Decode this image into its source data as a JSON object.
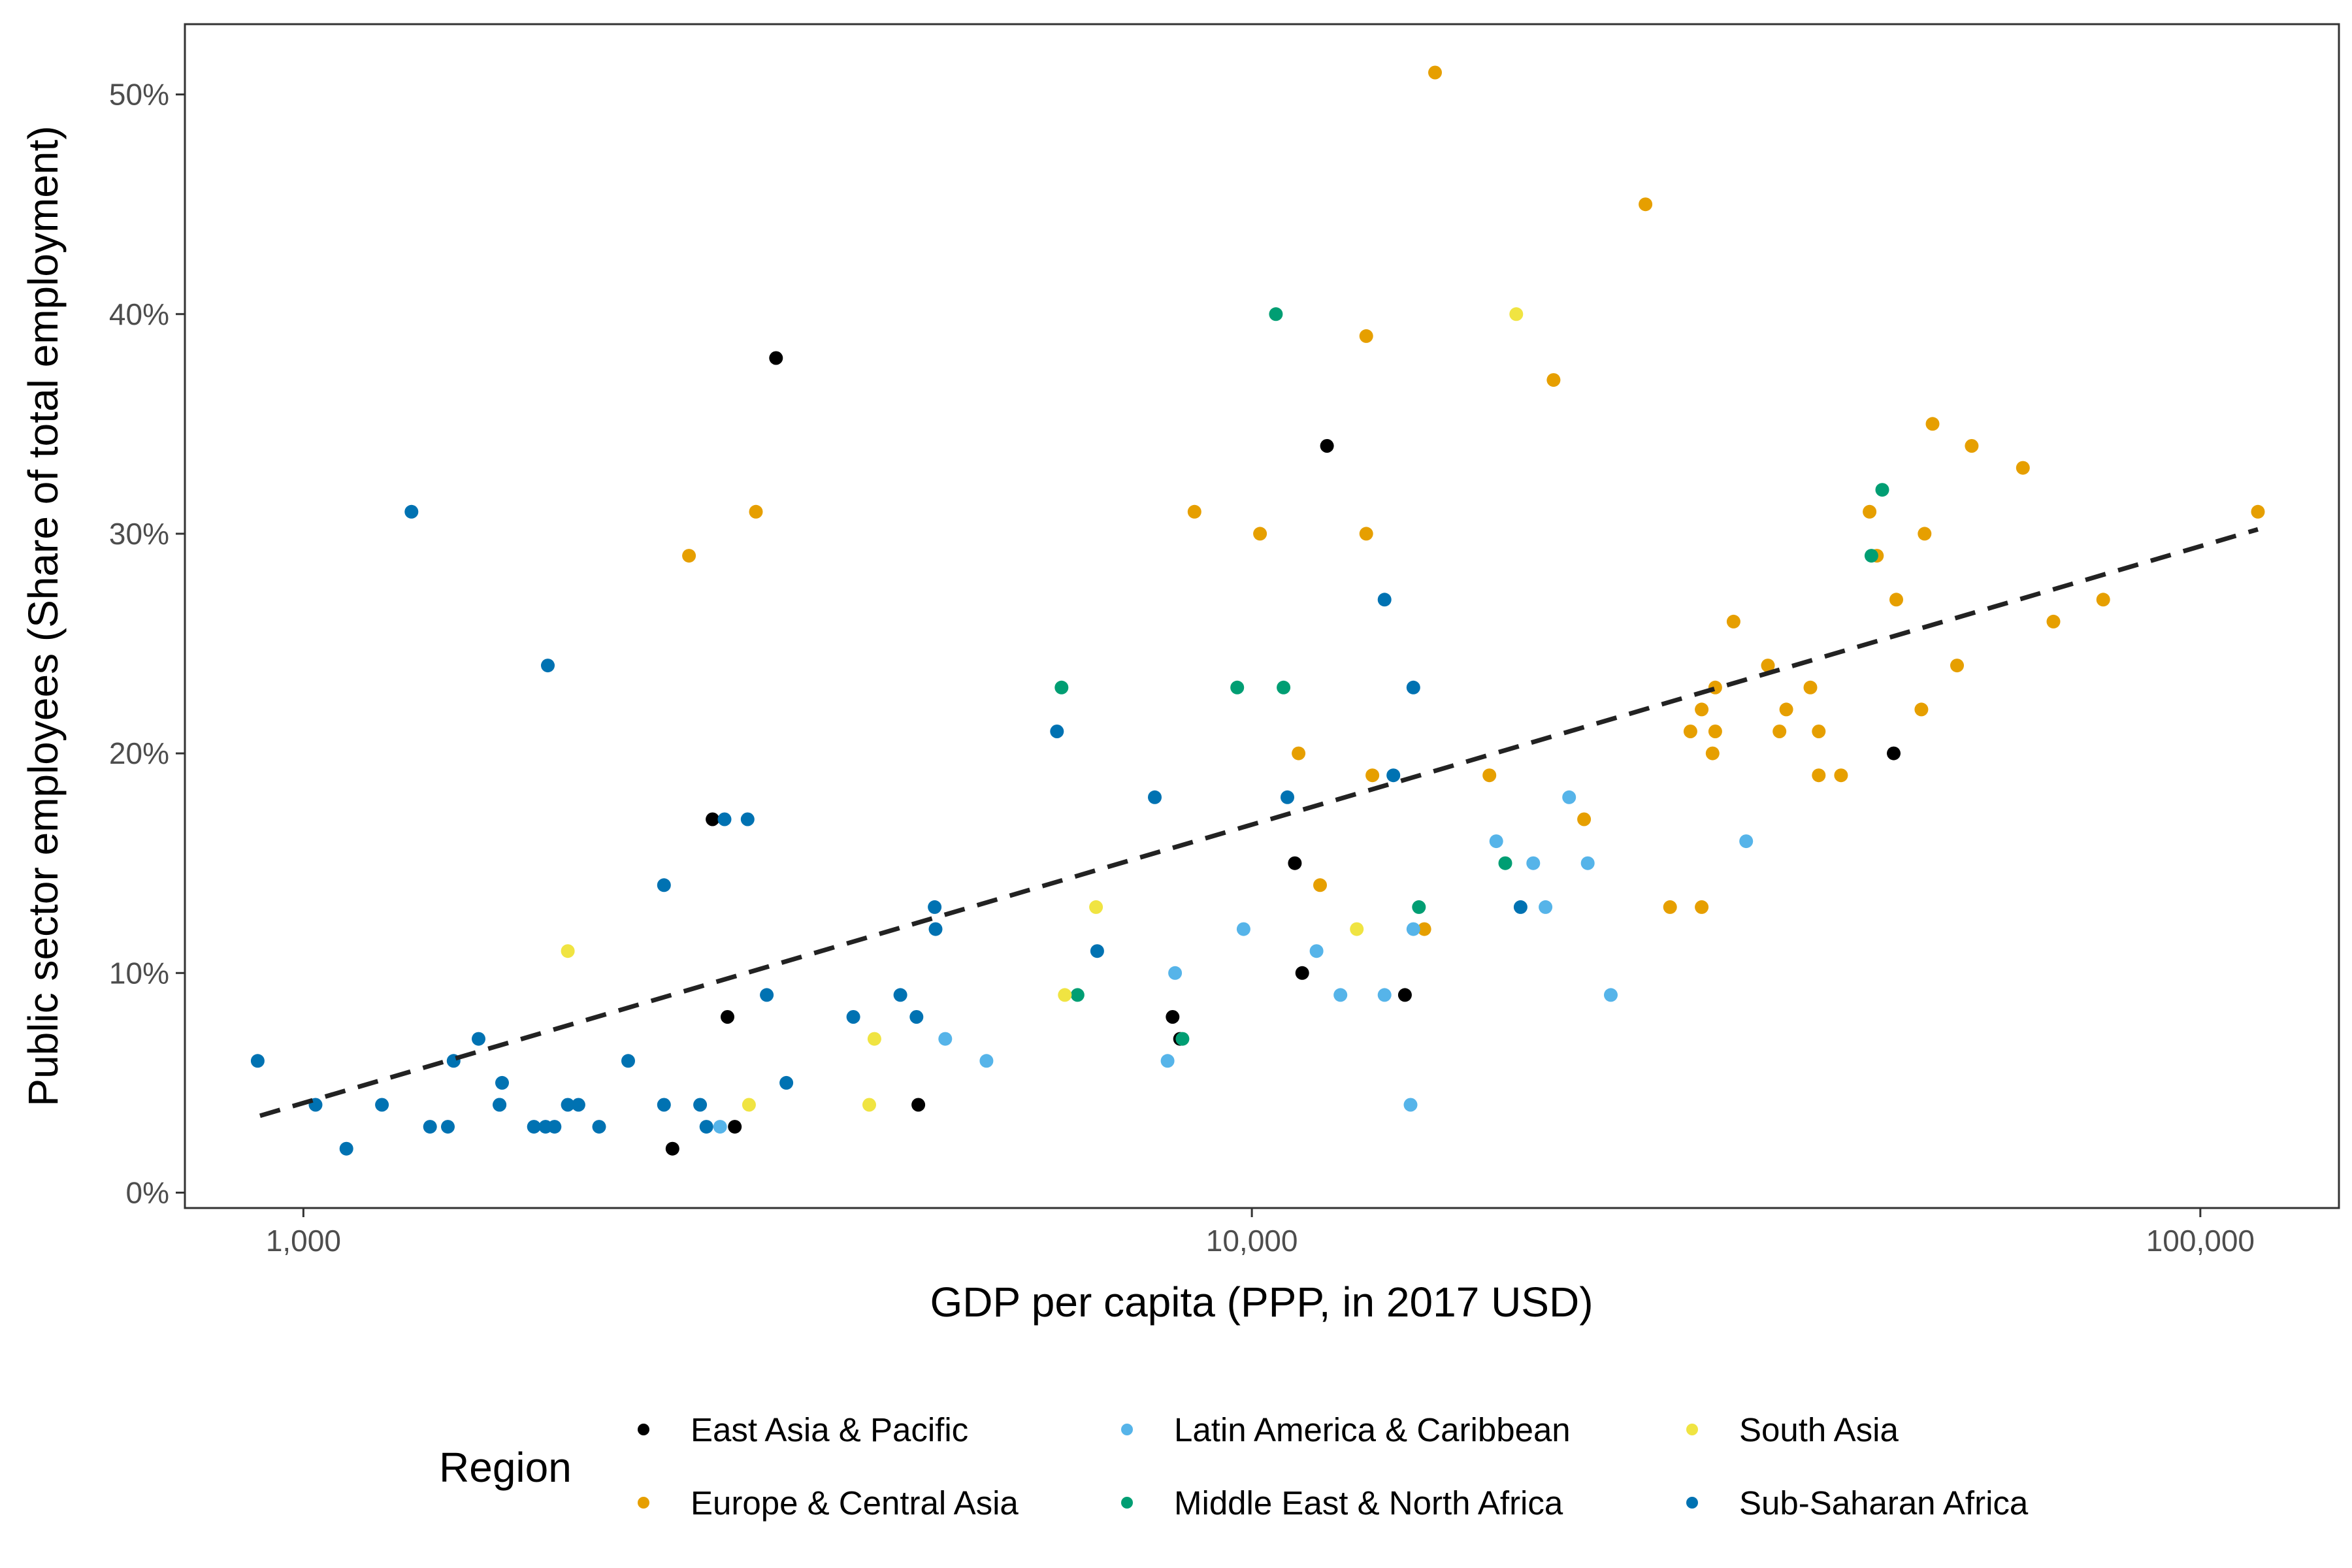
{
  "chart_data": {
    "type": "scatter",
    "title": "",
    "xlabel": "GDP per capita (PPP, in 2017 USD)",
    "ylabel": "Public sector employees (Share of total employment)",
    "x_scale": "log10",
    "xlim": [
      750,
      140000
    ],
    "ylim": [
      -0.007,
      0.532
    ],
    "x_ticks": [
      {
        "value": 1000,
        "label": "1,000"
      },
      {
        "value": 10000,
        "label": "10,000"
      },
      {
        "value": 100000,
        "label": "100,000"
      }
    ],
    "y_ticks": [
      {
        "value": 0,
        "label": "0%"
      },
      {
        "value": 0.1,
        "label": "10%"
      },
      {
        "value": 0.2,
        "label": "20%"
      },
      {
        "value": 0.3,
        "label": "30%"
      },
      {
        "value": 0.4,
        "label": "40%"
      },
      {
        "value": 0.5,
        "label": "50%"
      }
    ],
    "grid": false,
    "legend": {
      "title": "Region",
      "position": "bottom"
    },
    "trend_line": {
      "style": "dashed",
      "color": "#222222",
      "x": [
        900,
        115000
      ],
      "y": [
        0.035,
        0.302
      ]
    },
    "series": [
      {
        "name": "East Asia & Pacific",
        "color": "#000000",
        "points": [
          [
            2450,
            0.02
          ],
          [
            2700,
            0.17
          ],
          [
            2800,
            0.08
          ],
          [
            2850,
            0.03
          ],
          [
            3150,
            0.38
          ],
          [
            4450,
            0.04
          ],
          [
            8250,
            0.08
          ],
          [
            8400,
            0.07
          ],
          [
            11100,
            0.15
          ],
          [
            11300,
            0.1
          ],
          [
            12000,
            0.34
          ],
          [
            14500,
            0.09
          ],
          [
            47500,
            0.2
          ]
        ]
      },
      {
        "name": "Europe & Central Asia",
        "color": "#E69F00",
        "points": [
          [
            2550,
            0.29
          ],
          [
            3000,
            0.31
          ],
          [
            8700,
            0.31
          ],
          [
            10200,
            0.3
          ],
          [
            11200,
            0.2
          ],
          [
            11800,
            0.14
          ],
          [
            13200,
            0.39
          ],
          [
            13200,
            0.3
          ],
          [
            13400,
            0.19
          ],
          [
            15200,
            0.12
          ],
          [
            15600,
            0.51
          ],
          [
            17800,
            0.19
          ],
          [
            20800,
            0.37
          ],
          [
            22400,
            0.17
          ],
          [
            26000,
            0.45
          ],
          [
            27600,
            0.13
          ],
          [
            29000,
            0.21
          ],
          [
            29800,
            0.13
          ],
          [
            29800,
            0.22
          ],
          [
            30600,
            0.2
          ],
          [
            30800,
            0.23
          ],
          [
            30800,
            0.21
          ],
          [
            32200,
            0.26
          ],
          [
            35000,
            0.24
          ],
          [
            36000,
            0.21
          ],
          [
            36600,
            0.22
          ],
          [
            38800,
            0.23
          ],
          [
            39600,
            0.21
          ],
          [
            39600,
            0.19
          ],
          [
            41800,
            0.19
          ],
          [
            44800,
            0.31
          ],
          [
            45600,
            0.29
          ],
          [
            47800,
            0.27
          ],
          [
            50800,
            0.22
          ],
          [
            51200,
            0.3
          ],
          [
            52200,
            0.35
          ],
          [
            55400,
            0.24
          ],
          [
            57400,
            0.34
          ],
          [
            65000,
            0.33
          ],
          [
            70000,
            0.26
          ],
          [
            79000,
            0.27
          ],
          [
            115000,
            0.31
          ]
        ]
      },
      {
        "name": "Latin America & Caribbean",
        "color": "#56B4E9",
        "points": [
          [
            2750,
            0.03
          ],
          [
            4750,
            0.07
          ],
          [
            5250,
            0.06
          ],
          [
            8150,
            0.06
          ],
          [
            8300,
            0.1
          ],
          [
            9800,
            0.12
          ],
          [
            11700,
            0.11
          ],
          [
            12400,
            0.09
          ],
          [
            13800,
            0.09
          ],
          [
            14700,
            0.04
          ],
          [
            14800,
            0.12
          ],
          [
            18100,
            0.16
          ],
          [
            19800,
            0.15
          ],
          [
            20400,
            0.13
          ],
          [
            21600,
            0.18
          ],
          [
            22600,
            0.15
          ],
          [
            23900,
            0.09
          ],
          [
            33200,
            0.16
          ]
        ]
      },
      {
        "name": "Middle East & North Africa",
        "color": "#009E73",
        "points": [
          [
            6300,
            0.23
          ],
          [
            6550,
            0.09
          ],
          [
            8450,
            0.07
          ],
          [
            9650,
            0.23
          ],
          [
            10600,
            0.4
          ],
          [
            10800,
            0.23
          ],
          [
            15000,
            0.13
          ],
          [
            18500,
            0.15
          ],
          [
            45000,
            0.29
          ],
          [
            46200,
            0.32
          ]
        ]
      },
      {
        "name": "South Asia",
        "color": "#F0E442",
        "points": [
          [
            1900,
            0.11
          ],
          [
            2950,
            0.04
          ],
          [
            3950,
            0.04
          ],
          [
            4000,
            0.07
          ],
          [
            6350,
            0.09
          ],
          [
            6850,
            0.13
          ],
          [
            12900,
            0.12
          ],
          [
            19000,
            0.4
          ]
        ]
      },
      {
        "name": "Sub-Saharan Africa",
        "color": "#0072B2",
        "points": [
          [
            895,
            0.06
          ],
          [
            1030,
            0.04
          ],
          [
            1110,
            0.02
          ],
          [
            1210,
            0.04
          ],
          [
            1300,
            0.31
          ],
          [
            1360,
            0.03
          ],
          [
            1420,
            0.03
          ],
          [
            1440,
            0.06
          ],
          [
            1530,
            0.07
          ],
          [
            1610,
            0.04
          ],
          [
            1620,
            0.05
          ],
          [
            1610,
            0.04
          ],
          [
            1750,
            0.03
          ],
          [
            1810,
            0.24
          ],
          [
            1800,
            0.03
          ],
          [
            1840,
            0.03
          ],
          [
            1900,
            0.04
          ],
          [
            1950,
            0.04
          ],
          [
            2050,
            0.03
          ],
          [
            2200,
            0.06
          ],
          [
            2400,
            0.04
          ],
          [
            2400,
            0.14
          ],
          [
            2620,
            0.04
          ],
          [
            2660,
            0.03
          ],
          [
            2780,
            0.17
          ],
          [
            2940,
            0.17
          ],
          [
            3080,
            0.09
          ],
          [
            3230,
            0.05
          ],
          [
            3800,
            0.08
          ],
          [
            4260,
            0.09
          ],
          [
            4430,
            0.08
          ],
          [
            4630,
            0.13
          ],
          [
            4640,
            0.12
          ],
          [
            6230,
            0.21
          ],
          [
            6870,
            0.11
          ],
          [
            7900,
            0.18
          ],
          [
            10900,
            0.18
          ],
          [
            13800,
            0.27
          ],
          [
            14100,
            0.19
          ],
          [
            14800,
            0.23
          ],
          [
            19200,
            0.13
          ]
        ]
      }
    ]
  }
}
